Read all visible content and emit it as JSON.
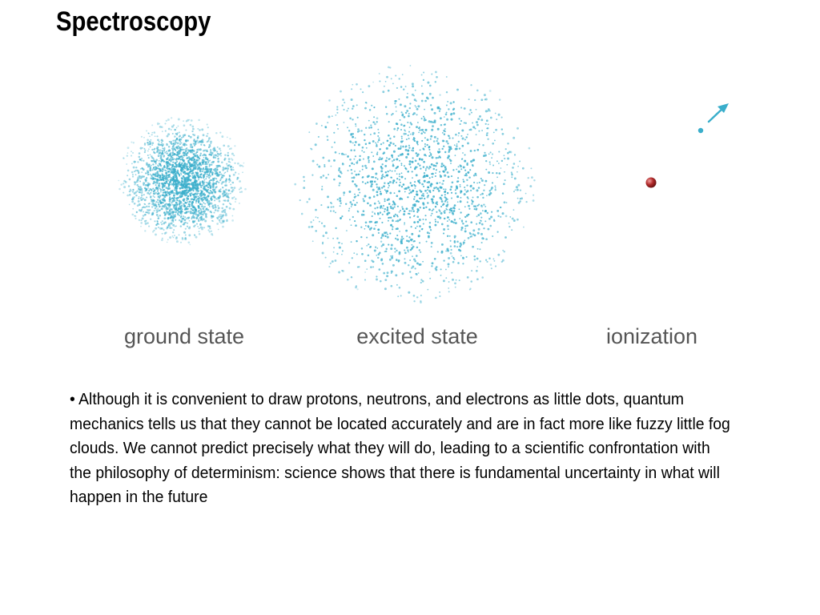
{
  "slide": {
    "title": "Spectroscopy"
  },
  "figure": {
    "labels": {
      "ground": "ground state",
      "excited": "excited state",
      "ionization": "ionization"
    },
    "colors": {
      "cloud": "#3aaecb",
      "arrow": "#3aaecb",
      "nucleus": "#b02a2a"
    }
  },
  "body": {
    "text": "• Although it is convenient to draw protons, neutrons, and electrons as little dots, quantum mechanics tells us that they cannot be located accurately and are in fact more like fuzzy little fog clouds. We cannot predict precisely what they will do, leading to a scientific confrontation with the philosophy of determinism: science shows that there is fundamental uncertainty in what will happen in the future"
  }
}
